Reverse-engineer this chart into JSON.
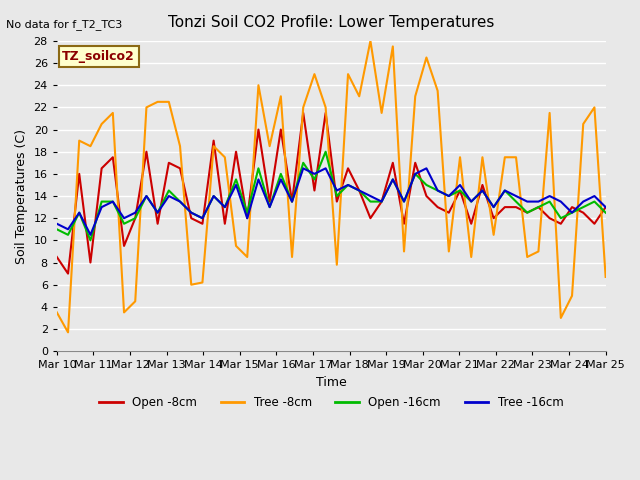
{
  "title": "Tonzi Soil CO2 Profile: Lower Temperatures",
  "subtitle": "No data for f_T2_TC3",
  "xlabel": "Time",
  "ylabel": "Soil Temperatures (C)",
  "legend_label": "TZ_soilco2",
  "ylim": [
    0,
    28
  ],
  "yticks": [
    0,
    2,
    4,
    6,
    8,
    10,
    12,
    14,
    16,
    18,
    20,
    22,
    24,
    26,
    28
  ],
  "x_labels": [
    "Mar 10",
    "Mar 11",
    "Mar 12",
    "Mar 13",
    "Mar 14",
    "Mar 15",
    "Mar 16",
    "Mar 17",
    "Mar 18",
    "Mar 19",
    "Mar 20",
    "Mar 21",
    "Mar 22",
    "Mar 23",
    "Mar 24",
    "Mar 25"
  ],
  "series": {
    "open_8cm": {
      "label": "Open -8cm",
      "color": "#cc0000",
      "data": [
        8.5,
        7.0,
        16.0,
        8.0,
        16.5,
        17.5,
        9.5,
        12.0,
        18.0,
        11.5,
        17.0,
        16.5,
        12.0,
        11.5,
        19.0,
        11.5,
        18.0,
        12.0,
        20.0,
        13.5,
        20.0,
        13.5,
        21.5,
        14.5,
        21.5,
        13.5,
        16.5,
        14.5,
        12.0,
        13.5,
        17.0,
        11.5,
        17.0,
        14.0,
        13.0,
        12.5,
        14.5,
        11.5,
        15.0,
        12.0,
        13.0,
        13.0,
        12.5,
        13.0,
        12.0,
        11.5,
        13.0,
        12.5,
        11.5,
        13.0
      ]
    },
    "tree_8cm": {
      "label": "Tree -8cm",
      "color": "#ff9900",
      "data": [
        3.5,
        1.7,
        19.0,
        18.5,
        20.5,
        21.5,
        3.5,
        4.5,
        22.0,
        22.5,
        22.5,
        18.5,
        6.0,
        6.2,
        18.5,
        17.5,
        9.5,
        8.5,
        24.0,
        18.5,
        23.0,
        8.5,
        22.0,
        25.0,
        22.0,
        7.8,
        25.0,
        23.0,
        28.0,
        21.5,
        27.5,
        9.0,
        23.0,
        26.5,
        23.5,
        9.0,
        17.5,
        8.5,
        17.5,
        10.5,
        17.5,
        17.5,
        8.5,
        9.0,
        21.5,
        3.0,
        5.0,
        20.5,
        22.0,
        6.7
      ]
    },
    "open_16cm": {
      "label": "Open -16cm",
      "color": "#00bb00",
      "data": [
        11.0,
        10.5,
        12.5,
        10.0,
        13.5,
        13.5,
        11.5,
        12.0,
        14.0,
        12.5,
        14.5,
        13.5,
        12.5,
        12.0,
        14.0,
        13.0,
        15.5,
        12.5,
        16.5,
        13.0,
        16.0,
        13.5,
        17.0,
        15.5,
        18.0,
        14.0,
        15.0,
        14.5,
        13.5,
        13.5,
        15.5,
        13.5,
        16.0,
        15.0,
        14.5,
        14.0,
        14.5,
        13.5,
        14.5,
        13.0,
        14.5,
        13.5,
        12.5,
        13.0,
        13.5,
        12.0,
        12.5,
        13.0,
        13.5,
        12.5
      ]
    },
    "tree_16cm": {
      "label": "Tree -16cm",
      "color": "#0000cc",
      "data": [
        11.5,
        11.0,
        12.5,
        10.5,
        13.0,
        13.5,
        12.0,
        12.5,
        14.0,
        12.5,
        14.0,
        13.5,
        12.5,
        12.0,
        14.0,
        13.0,
        15.0,
        12.0,
        15.5,
        13.0,
        15.5,
        13.5,
        16.5,
        16.0,
        16.5,
        14.5,
        15.0,
        14.5,
        14.0,
        13.5,
        15.5,
        13.5,
        16.0,
        16.5,
        14.5,
        14.0,
        15.0,
        13.5,
        14.5,
        13.0,
        14.5,
        14.0,
        13.5,
        13.5,
        14.0,
        13.5,
        12.5,
        13.5,
        14.0,
        13.0
      ]
    }
  },
  "bg_color": "#e8e8e8",
  "plot_bg_color": "#e8e8e8",
  "grid_color": "#ffffff",
  "line_width": 1.5
}
